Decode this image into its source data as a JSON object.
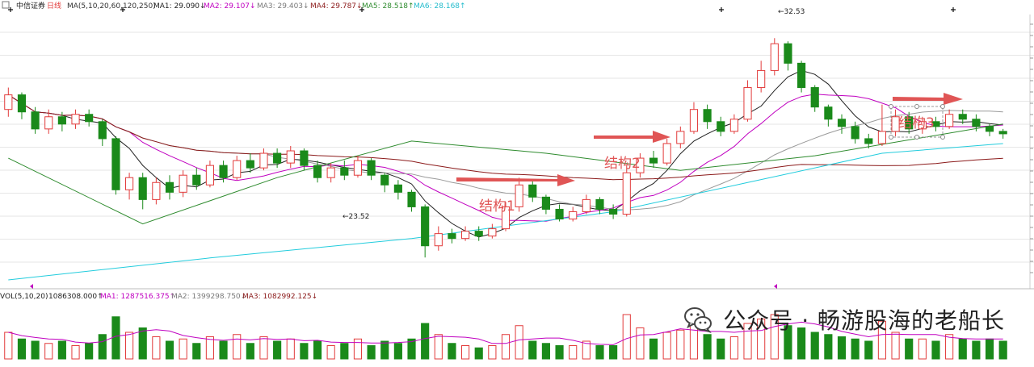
{
  "legend": {
    "name": "中信证券",
    "period": "日线",
    "ma_params": "MA(5,10,20,60,120,250)",
    "ma1": "MA1: 29.090↓",
    "ma2": "MA2: 29.107↓",
    "ma3": "MA3: 29.403↓",
    "ma4": "MA4: 29.787↓",
    "ma5": "MA5: 28.518↑",
    "ma6": "MA6: 28.168↑"
  },
  "volume_legend": {
    "params": "VOL(5,10,20)",
    "vol": "1086308.000↑",
    "ma1": "MA1: 1287516.375↑",
    "ma2": "MA2: 1399298.750↓",
    "ma3": "MA3: 1082992.125↓"
  },
  "annotations": {
    "structure1": "结构1",
    "structure2": "结构2",
    "structure3": "结构3",
    "low_label": "←23.52",
    "high_label": "←32.53"
  },
  "watermark": {
    "text": "公众号 · 畅游股海的老船长",
    "logo_icon": "wechat-logo-icon"
  },
  "colors": {
    "up": "#e23b3b",
    "down": "#1a8a1a",
    "ma1": "#222222",
    "ma2": "#c000c0",
    "ma3": "#9a9a9a",
    "ma4": "#8b1a1a",
    "ma5": "#2e8b2e",
    "ma6": "#22ccdd",
    "arrow": "#e05555",
    "grid": "#e6e6e6"
  },
  "chart_data": {
    "type": "candlestick",
    "title": "",
    "ylim": [
      22.5,
      33.5
    ],
    "grid": true,
    "candles": [
      [
        29.6,
        30.2,
        30.5,
        29.3
      ],
      [
        30.2,
        29.5,
        30.3,
        29.2
      ],
      [
        29.5,
        28.8,
        29.7,
        28.6
      ],
      [
        28.8,
        29.3,
        29.6,
        28.6
      ],
      [
        29.3,
        29.0,
        29.5,
        28.7
      ],
      [
        29.0,
        29.4,
        29.6,
        28.8
      ],
      [
        29.4,
        29.1,
        29.6,
        28.9
      ],
      [
        29.1,
        28.4,
        29.2,
        28.1
      ],
      [
        28.4,
        26.3,
        28.5,
        26.1
      ],
      [
        26.3,
        26.8,
        27.0,
        25.9
      ],
      [
        26.8,
        25.9,
        27.0,
        25.5
      ],
      [
        25.9,
        26.6,
        26.8,
        25.7
      ],
      [
        26.6,
        26.2,
        26.9,
        25.9
      ],
      [
        26.2,
        26.9,
        27.1,
        26.0
      ],
      [
        26.9,
        26.5,
        27.2,
        26.3
      ],
      [
        26.5,
        27.3,
        27.5,
        26.4
      ],
      [
        27.3,
        26.8,
        27.5,
        26.6
      ],
      [
        26.8,
        27.5,
        27.7,
        26.7
      ],
      [
        27.5,
        27.2,
        27.8,
        27.0
      ],
      [
        27.2,
        27.8,
        28.0,
        27.1
      ],
      [
        27.8,
        27.4,
        28.0,
        27.2
      ],
      [
        27.4,
        27.9,
        28.1,
        27.2
      ],
      [
        27.9,
        27.3,
        28.0,
        27.1
      ],
      [
        27.3,
        26.8,
        27.5,
        26.6
      ],
      [
        26.8,
        27.2,
        27.4,
        26.6
      ],
      [
        27.2,
        26.9,
        27.5,
        26.7
      ],
      [
        26.9,
        27.5,
        27.7,
        26.8
      ],
      [
        27.5,
        26.9,
        27.6,
        26.7
      ],
      [
        26.9,
        26.5,
        27.0,
        26.2
      ],
      [
        26.5,
        26.2,
        26.7,
        25.9
      ],
      [
        26.2,
        25.6,
        26.3,
        25.4
      ],
      [
        25.6,
        24.0,
        25.7,
        23.52
      ],
      [
        24.0,
        24.5,
        24.8,
        23.8
      ],
      [
        24.5,
        24.3,
        24.7,
        24.1
      ],
      [
        24.3,
        24.6,
        24.8,
        24.2
      ],
      [
        24.6,
        24.4,
        24.8,
        24.2
      ],
      [
        24.4,
        24.7,
        24.9,
        24.3
      ],
      [
        24.7,
        25.6,
        25.8,
        24.6
      ],
      [
        25.6,
        26.5,
        26.8,
        25.4
      ],
      [
        26.5,
        26.0,
        26.7,
        25.8
      ],
      [
        26.0,
        25.5,
        26.1,
        25.3
      ],
      [
        25.5,
        25.1,
        25.7,
        25.0
      ],
      [
        25.1,
        25.4,
        25.6,
        25.0
      ],
      [
        25.4,
        25.9,
        26.1,
        25.3
      ],
      [
        25.9,
        25.5,
        26.0,
        25.3
      ],
      [
        25.5,
        25.3,
        25.7,
        25.1
      ],
      [
        25.3,
        27.0,
        27.3,
        25.2
      ],
      [
        27.0,
        27.6,
        27.8,
        26.8
      ],
      [
        27.6,
        27.4,
        27.9,
        27.2
      ],
      [
        27.4,
        28.2,
        28.4,
        27.3
      ],
      [
        28.2,
        28.7,
        28.9,
        28.0
      ],
      [
        28.7,
        29.6,
        29.9,
        28.6
      ],
      [
        29.6,
        29.1,
        29.8,
        28.8
      ],
      [
        29.1,
        28.7,
        29.3,
        28.5
      ],
      [
        28.7,
        29.2,
        29.4,
        28.6
      ],
      [
        29.2,
        30.5,
        30.8,
        29.1
      ],
      [
        30.5,
        31.2,
        31.6,
        30.3
      ],
      [
        31.2,
        32.3,
        32.53,
        31.0
      ],
      [
        32.3,
        31.5,
        32.4,
        31.2
      ],
      [
        31.5,
        30.5,
        31.6,
        30.3
      ],
      [
        30.5,
        29.7,
        30.6,
        29.5
      ],
      [
        29.7,
        29.2,
        29.8,
        28.9
      ],
      [
        29.2,
        28.9,
        29.4,
        28.6
      ],
      [
        28.9,
        28.4,
        29.1,
        28.2
      ],
      [
        28.4,
        28.2,
        28.6,
        28.0
      ],
      [
        28.2,
        28.7,
        29.8,
        28.1
      ],
      [
        28.7,
        29.3,
        29.6,
        28.5
      ],
      [
        29.3,
        28.8,
        29.5,
        28.6
      ],
      [
        28.8,
        29.1,
        29.3,
        28.6
      ],
      [
        29.1,
        28.9,
        29.3,
        28.7
      ],
      [
        28.9,
        29.4,
        29.6,
        28.8
      ],
      [
        29.4,
        29.2,
        29.6,
        29.0
      ],
      [
        29.2,
        28.9,
        29.4,
        28.7
      ],
      [
        28.9,
        28.7,
        29.0,
        28.5
      ],
      [
        28.7,
        28.6,
        28.8,
        28.4
      ]
    ],
    "volume": [
      {
        "v": 0.6,
        "up": true
      },
      {
        "v": 0.45,
        "up": false
      },
      {
        "v": 0.4,
        "up": false
      },
      {
        "v": 0.35,
        "up": true
      },
      {
        "v": 0.4,
        "up": false
      },
      {
        "v": 0.3,
        "up": true
      },
      {
        "v": 0.35,
        "up": false
      },
      {
        "v": 0.55,
        "up": false
      },
      {
        "v": 0.95,
        "up": false
      },
      {
        "v": 0.6,
        "up": true
      },
      {
        "v": 0.7,
        "up": false
      },
      {
        "v": 0.5,
        "up": true
      },
      {
        "v": 0.4,
        "up": false
      },
      {
        "v": 0.45,
        "up": true
      },
      {
        "v": 0.35,
        "up": false
      },
      {
        "v": 0.5,
        "up": true
      },
      {
        "v": 0.4,
        "up": false
      },
      {
        "v": 0.55,
        "up": true
      },
      {
        "v": 0.35,
        "up": false
      },
      {
        "v": 0.5,
        "up": true
      },
      {
        "v": 0.4,
        "up": false
      },
      {
        "v": 0.45,
        "up": true
      },
      {
        "v": 0.35,
        "up": false
      },
      {
        "v": 0.4,
        "up": false
      },
      {
        "v": 0.3,
        "up": true
      },
      {
        "v": 0.35,
        "up": false
      },
      {
        "v": 0.45,
        "up": true
      },
      {
        "v": 0.3,
        "up": false
      },
      {
        "v": 0.4,
        "up": false
      },
      {
        "v": 0.35,
        "up": false
      },
      {
        "v": 0.45,
        "up": false
      },
      {
        "v": 0.8,
        "up": false
      },
      {
        "v": 0.55,
        "up": true
      },
      {
        "v": 0.35,
        "up": false
      },
      {
        "v": 0.3,
        "up": true
      },
      {
        "v": 0.25,
        "up": false
      },
      {
        "v": 0.3,
        "up": true
      },
      {
        "v": 0.55,
        "up": true
      },
      {
        "v": 0.75,
        "up": true
      },
      {
        "v": 0.4,
        "up": false
      },
      {
        "v": 0.35,
        "up": false
      },
      {
        "v": 0.3,
        "up": false
      },
      {
        "v": 0.3,
        "up": true
      },
      {
        "v": 0.4,
        "up": true
      },
      {
        "v": 0.3,
        "up": false
      },
      {
        "v": 0.3,
        "up": false
      },
      {
        "v": 1.0,
        "up": true
      },
      {
        "v": 0.7,
        "up": true
      },
      {
        "v": 0.45,
        "up": false
      },
      {
        "v": 0.6,
        "up": true
      },
      {
        "v": 0.65,
        "up": true
      },
      {
        "v": 0.85,
        "up": true
      },
      {
        "v": 0.55,
        "up": false
      },
      {
        "v": 0.45,
        "up": false
      },
      {
        "v": 0.5,
        "up": true
      },
      {
        "v": 0.8,
        "up": true
      },
      {
        "v": 0.9,
        "up": true
      },
      {
        "v": 1.0,
        "up": true
      },
      {
        "v": 0.75,
        "up": false
      },
      {
        "v": 0.7,
        "up": false
      },
      {
        "v": 0.6,
        "up": false
      },
      {
        "v": 0.55,
        "up": false
      },
      {
        "v": 0.5,
        "up": false
      },
      {
        "v": 0.45,
        "up": false
      },
      {
        "v": 0.4,
        "up": false
      },
      {
        "v": 0.85,
        "up": true
      },
      {
        "v": 0.6,
        "up": true
      },
      {
        "v": 0.45,
        "up": false
      },
      {
        "v": 0.45,
        "up": true
      },
      {
        "v": 0.4,
        "up": false
      },
      {
        "v": 0.55,
        "up": true
      },
      {
        "v": 0.45,
        "up": false
      },
      {
        "v": 0.4,
        "up": false
      },
      {
        "v": 0.45,
        "up": false
      },
      {
        "v": 0.4,
        "up": false
      }
    ]
  }
}
